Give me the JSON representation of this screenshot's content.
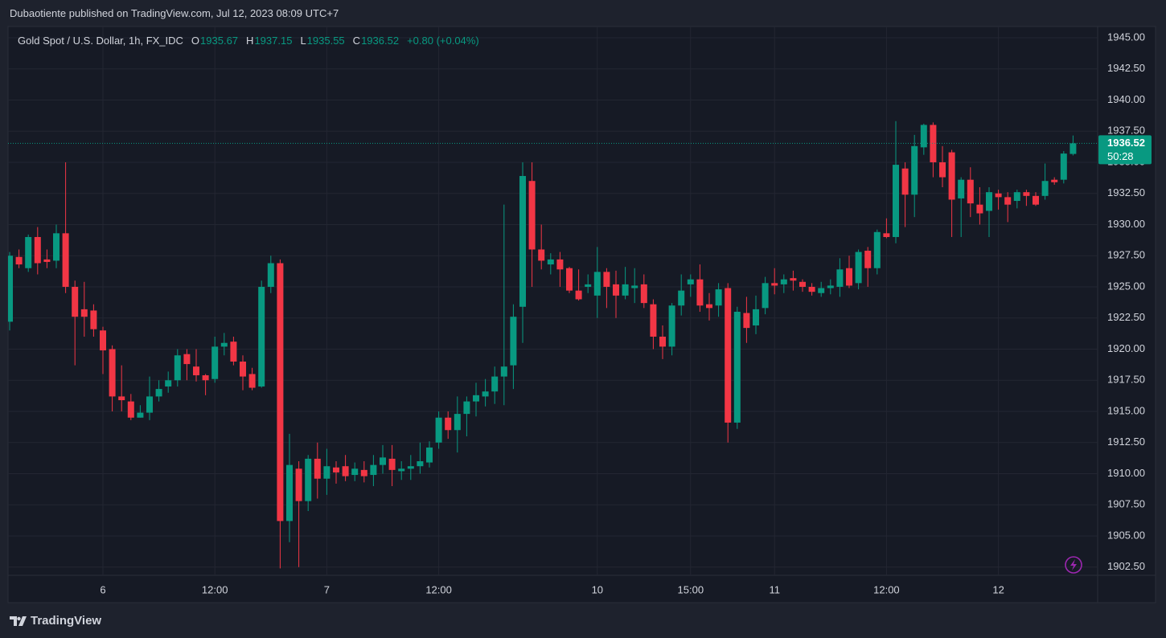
{
  "header": {
    "publisher_line": "Dubaotiente published on TradingView.com, Jul 12, 2023 08:09 UTC+7"
  },
  "footer": {
    "brand": "TradingView"
  },
  "chart_data": {
    "type": "candlestick",
    "symbol": "Gold Spot / U.S. Dollar, 1h, FX_IDC",
    "ohlc_legend": [
      {
        "key": "O",
        "value": "1935.67"
      },
      {
        "key": "H",
        "value": "1937.15"
      },
      {
        "key": "L",
        "value": "1935.55"
      },
      {
        "key": "C",
        "value": "1936.52"
      }
    ],
    "change": "+0.80 (+0.04%)",
    "last_price": {
      "value": 1936.52,
      "label": "1936.52"
    },
    "countdown": "50:28",
    "up_color": "#089981",
    "down_color": "#f23645",
    "grid": true,
    "ylim": [
      1901.84,
      1945.9
    ],
    "yticks": [
      {
        "value": 1902.5,
        "label": "1902.50"
      },
      {
        "value": 1905,
        "label": "1905.00"
      },
      {
        "value": 1907.5,
        "label": "1907.50"
      },
      {
        "value": 1910,
        "label": "1910.00"
      },
      {
        "value": 1912.5,
        "label": "1912.50"
      },
      {
        "value": 1915,
        "label": "1915.00"
      },
      {
        "value": 1917.5,
        "label": "1917.50"
      },
      {
        "value": 1920,
        "label": "1920.00"
      },
      {
        "value": 1922.5,
        "label": "1922.50"
      },
      {
        "value": 1925,
        "label": "1925.00"
      },
      {
        "value": 1927.5,
        "label": "1927.50"
      },
      {
        "value": 1930,
        "label": "1930.00"
      },
      {
        "value": 1932.5,
        "label": "1932.50"
      },
      {
        "value": 1935,
        "label": "1935.00"
      },
      {
        "value": 1937.5,
        "label": "1937.50"
      },
      {
        "value": 1940,
        "label": "1940.00"
      },
      {
        "value": 1942.5,
        "label": "1942.50"
      },
      {
        "value": 1945,
        "label": "1945.00"
      }
    ],
    "categories": [
      null,
      null,
      null,
      null,
      null,
      null,
      null,
      null,
      null,
      null,
      "6",
      null,
      null,
      null,
      null,
      null,
      null,
      null,
      null,
      null,
      null,
      null,
      "12:00",
      null,
      null,
      null,
      null,
      null,
      null,
      null,
      null,
      null,
      null,
      null,
      "7",
      null,
      null,
      null,
      null,
      null,
      null,
      null,
      null,
      null,
      null,
      null,
      "12:00",
      null,
      null,
      null,
      null,
      null,
      null,
      null,
      null,
      null,
      null,
      null,
      null,
      null,
      null,
      null,
      null,
      "10",
      null,
      null,
      null,
      null,
      null,
      null,
      null,
      null,
      null,
      "15:00",
      null,
      null,
      null,
      null,
      null,
      null,
      null,
      null,
      "11",
      null,
      null,
      null,
      null,
      null,
      null,
      null,
      null,
      null,
      null,
      null,
      "12:00",
      null,
      null,
      null,
      null,
      null,
      null,
      null,
      null,
      null,
      null,
      null,
      "12",
      null,
      null,
      null,
      null,
      null,
      null,
      null,
      null
    ],
    "open": [
      1922.2,
      1927.4,
      1926.5,
      1929,
      1927.2,
      1927.1,
      1929.3,
      1925,
      1923.2,
      1923.1,
      1921.5,
      1920,
      1916.2,
      1915.8,
      1914.5,
      1914.9,
      1916.2,
      1917,
      1917.5,
      1919.6,
      1918.6,
      1917.9,
      1917.6,
      1920.2,
      1920.6,
      1919,
      1918,
      1917,
      1925,
      1926.9,
      1906.2,
      1910.4,
      1907.8,
      1911.2,
      1909.6,
      1910.5,
      1910.6,
      1909.9,
      1910.3,
      1909.9,
      1910.7,
      1911.2,
      1910.2,
      1910.4,
      1910.6,
      1910.9,
      1912.5,
      1914.5,
      1913.5,
      1914.8,
      1915.8,
      1916.2,
      1916.6,
      1917.8,
      1918.7,
      1923.4,
      1933.5,
      1928,
      1926.8,
      1927.2,
      1926.5,
      1924.7,
      1925,
      1924.3,
      1926.2,
      1925.2,
      1924.3,
      1924.9,
      1925.2,
      1923.6,
      1921,
      1920.2,
      1923.5,
      1925.2,
      1925.6,
      1923.6,
      1923.5,
      1924.9,
      1914.1,
      1922.9,
      1921.9,
      1923.3,
      1925.3,
      1925.2,
      1925.7,
      1925.4,
      1925,
      1924.5,
      1924.9,
      1925,
      1926.5,
      1925.3,
      1927.9,
      1926.5,
      1929.3,
      1929,
      1934.5,
      1932.4,
      1936.2,
      1938,
      1935,
      1935.8,
      1932.1,
      1933.6,
      1931.6,
      1931.1,
      1932.5,
      1932.2,
      1931.9,
      1932.6,
      1932.3,
      1932.3,
      1933.6,
      1933.6,
      1935.67
    ],
    "high": [
      1927.8,
      1928,
      1929.2,
      1929.8,
      1928,
      1930,
      1935,
      1925.5,
      1925.4,
      1923.6,
      1921.8,
      1920.3,
      1918.7,
      1916.4,
      1915.5,
      1917.8,
      1917.5,
      1918.2,
      1920,
      1920,
      1920,
      1918,
      1921,
      1921.3,
      1921,
      1919.5,
      1918.5,
      1925.5,
      1927.5,
      1927.2,
      1913.2,
      1911,
      1911.5,
      1912.5,
      1912,
      1911,
      1911.5,
      1910.9,
      1911,
      1911.5,
      1912.3,
      1912.3,
      1911,
      1911.5,
      1912.5,
      1912.6,
      1915,
      1915,
      1916.2,
      1916.2,
      1917.3,
      1917.6,
      1918.6,
      1931.6,
      1923.6,
      1935,
      1935,
      1930,
      1927.7,
      1927.8,
      1926.6,
      1926.4,
      1926,
      1928.2,
      1926.5,
      1926.3,
      1926.6,
      1926.5,
      1926,
      1924,
      1921.9,
      1923.7,
      1926,
      1926,
      1926.8,
      1924.5,
      1925.3,
      1925.3,
      1923.4,
      1924.2,
      1924.3,
      1925.8,
      1926.5,
      1926,
      1926.3,
      1925.6,
      1925.3,
      1925.4,
      1925.6,
      1927.3,
      1927.5,
      1928,
      1928.2,
      1929.6,
      1930.5,
      1938.3,
      1935,
      1937.2,
      1938.1,
      1938.2,
      1936.3,
      1936,
      1933.8,
      1934.6,
      1933,
      1933,
      1932.8,
      1932.6,
      1932.8,
      1932.8,
      1932.6,
      1934.9,
      1933.8,
      1935.9,
      1937.15
    ],
    "low": [
      1921.5,
      1926.5,
      1926.2,
      1926,
      1926.5,
      1926.5,
      1924.5,
      1918.7,
      1921,
      1921,
      1918,
      1915,
      1915,
      1914.3,
      1914.5,
      1914.3,
      1915.8,
      1916.5,
      1917,
      1917.5,
      1917.4,
      1916.3,
      1917.3,
      1919.5,
      1918.7,
      1916.7,
      1916.7,
      1916.9,
      1924.5,
      1902.4,
      1904.5,
      1902.5,
      1907,
      1908,
      1908.3,
      1909.2,
      1909.4,
      1909.4,
      1909.3,
      1909,
      1910,
      1909,
      1909.5,
      1909.5,
      1910,
      1910.5,
      1912,
      1912.8,
      1911.7,
      1913,
      1914.6,
      1915.4,
      1915.6,
      1915.5,
      1916.8,
      1920.5,
      1925,
      1926.4,
      1926,
      1925,
      1924.5,
      1923.9,
      1924.5,
      1922.5,
      1923.3,
      1922.5,
      1924,
      1923.7,
      1923.3,
      1920,
      1919.2,
      1919.5,
      1922.7,
      1924.2,
      1923,
      1922.3,
      1922.6,
      1912.5,
      1913.6,
      1920.5,
      1921.2,
      1922.8,
      1924.4,
      1924.5,
      1924.7,
      1924.6,
      1924.3,
      1924.2,
      1924.4,
      1924.2,
      1924.9,
      1924.8,
      1925,
      1926,
      1928.9,
      1928.5,
      1929.8,
      1930.6,
      1935.6,
      1933.8,
      1933,
      1929,
      1929,
      1930.6,
      1930,
      1929,
      1931.2,
      1930.2,
      1931.3,
      1931.5,
      1931.5,
      1932,
      1933.2,
      1933.3,
      1935.55
    ],
    "close": [
      1927.5,
      1926.8,
      1929,
      1926.9,
      1927,
      1929.3,
      1925,
      1922.6,
      1922.6,
      1921.6,
      1919.9,
      1916.2,
      1915.9,
      1914.5,
      1914.9,
      1916.2,
      1916.8,
      1917.5,
      1919.5,
      1918.8,
      1917.9,
      1917.5,
      1920.2,
      1920.5,
      1919,
      1917.8,
      1916.9,
      1925,
      1926.9,
      1906.2,
      1910.7,
      1907.8,
      1911.2,
      1909.6,
      1910.6,
      1910.1,
      1909.8,
      1910.4,
      1909.8,
      1910.7,
      1911.3,
      1910.3,
      1910.4,
      1910.6,
      1911,
      1912.1,
      1914.5,
      1913.5,
      1914.8,
      1915.8,
      1916.3,
      1916.6,
      1917.8,
      1918.6,
      1922.6,
      1933.9,
      1928,
      1927.1,
      1927.2,
      1926.4,
      1924.7,
      1924,
      1925.2,
      1926.2,
      1925,
      1924.3,
      1925.2,
      1925.1,
      1923.7,
      1921,
      1920.2,
      1923.5,
      1924.7,
      1925.6,
      1923.5,
      1923.3,
      1924.8,
      1914.1,
      1923,
      1921.7,
      1923.2,
      1925.3,
      1925.1,
      1925.6,
      1925.5,
      1925,
      1924.6,
      1924.9,
      1925.1,
      1926.4,
      1925.1,
      1927.8,
      1926.5,
      1929.4,
      1929,
      1934.8,
      1932.4,
      1936.3,
      1938,
      1935,
      1933.8,
      1932,
      1933.6,
      1931.7,
      1930.9,
      1932.6,
      1932.2,
      1931.6,
      1932.6,
      1932.3,
      1931.6,
      1933.5,
      1933.4,
      1935.7,
      1936.52
    ]
  }
}
